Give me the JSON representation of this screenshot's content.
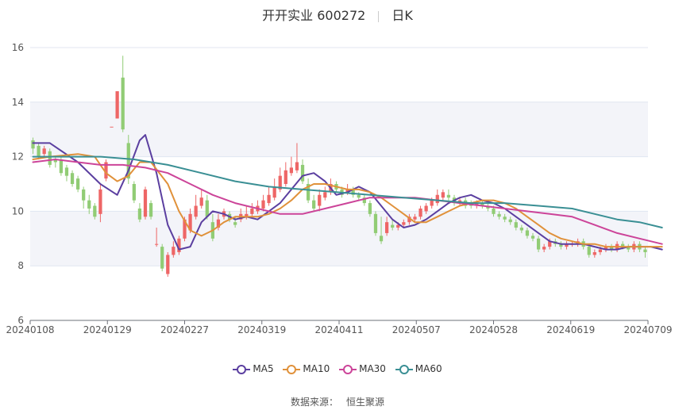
{
  "header": {
    "title": "开开实业 600272",
    "period": "日K"
  },
  "source": {
    "label": "数据来源：",
    "provider": "恒生聚源"
  },
  "colors": {
    "up": "#ee6666",
    "down": "#91cc75",
    "MA5": "#5b3fa0",
    "MA10": "#e0913a",
    "MA30": "#cc4499",
    "MA60": "#3a8f94",
    "band": "#f3f4f9",
    "grid": "#e0e6f1"
  },
  "chart_data": {
    "type": "candlestick",
    "title": "开开实业 600272",
    "ylim": [
      6,
      16
    ],
    "yticks": [
      6,
      8,
      10,
      12,
      14,
      16
    ],
    "xlabels": [
      "20240108",
      "20240129",
      "20240227",
      "20240319",
      "20240411",
      "20240507",
      "20240528",
      "20240619",
      "20240709"
    ],
    "legend": [
      "MA5",
      "MA10",
      "MA30",
      "MA60"
    ],
    "legend_position": "bottom",
    "grid": true,
    "candles": [
      [
        12.6,
        12.3,
        12.7,
        12.1
      ],
      [
        12.4,
        12.0,
        12.5,
        11.9
      ],
      [
        12.1,
        12.3,
        12.4,
        12.0
      ],
      [
        12.2,
        11.7,
        12.3,
        11.6
      ],
      [
        11.9,
        11.8,
        12.0,
        11.6
      ],
      [
        11.9,
        11.4,
        12.0,
        11.3
      ],
      [
        11.6,
        11.3,
        11.7,
        11.1
      ],
      [
        11.4,
        11.0,
        11.5,
        10.9
      ],
      [
        11.2,
        10.8,
        11.3,
        10.7
      ],
      [
        10.8,
        10.4,
        10.9,
        10.1
      ],
      [
        10.4,
        10.1,
        10.6,
        9.9
      ],
      [
        10.2,
        9.8,
        10.3,
        9.7
      ],
      [
        9.9,
        10.8,
        11.0,
        9.6
      ],
      [
        11.2,
        11.8,
        11.9,
        11.1
      ],
      [
        13.1,
        13.1,
        13.1,
        13.1
      ],
      [
        13.4,
        14.4,
        14.4,
        13.4
      ],
      [
        14.9,
        13.0,
        15.7,
        12.9
      ],
      [
        12.5,
        11.2,
        12.8,
        11.0
      ],
      [
        11.0,
        10.4,
        11.1,
        10.3
      ],
      [
        10.1,
        9.7,
        10.3,
        9.6
      ],
      [
        9.8,
        10.8,
        10.9,
        9.7
      ],
      [
        10.3,
        9.8,
        10.4,
        9.7
      ],
      [
        8.8,
        8.8,
        9.4,
        8.7
      ],
      [
        8.7,
        7.9,
        8.8,
        7.8
      ],
      [
        7.7,
        8.4,
        8.5,
        7.6
      ],
      [
        8.4,
        8.7,
        8.9,
        8.3
      ],
      [
        8.5,
        9.0,
        9.1,
        8.4
      ],
      [
        9.0,
        9.7,
        9.8,
        8.9
      ],
      [
        9.3,
        9.9,
        10.1,
        9.2
      ],
      [
        9.8,
        10.2,
        10.6,
        9.7
      ],
      [
        10.2,
        10.5,
        10.8,
        10.1
      ],
      [
        10.4,
        9.8,
        10.6,
        9.7
      ],
      [
        9.6,
        9.0,
        9.9,
        8.9
      ],
      [
        9.4,
        9.7,
        9.9,
        9.3
      ],
      [
        9.8,
        10.0,
        10.1,
        9.7
      ],
      [
        9.9,
        9.7,
        10.0,
        9.6
      ],
      [
        9.6,
        9.5,
        9.8,
        9.4
      ],
      [
        9.7,
        9.9,
        10.1,
        9.6
      ],
      [
        9.8,
        9.9,
        10.2,
        9.7
      ],
      [
        9.9,
        10.1,
        10.3,
        9.8
      ],
      [
        10.0,
        10.2,
        10.4,
        9.9
      ],
      [
        10.1,
        10.4,
        10.6,
        10.0
      ],
      [
        10.3,
        10.6,
        10.9,
        10.2
      ],
      [
        10.5,
        10.9,
        11.2,
        10.4
      ],
      [
        10.8,
        11.3,
        11.6,
        10.7
      ],
      [
        11.0,
        11.5,
        11.8,
        10.9
      ],
      [
        11.4,
        11.6,
        12.0,
        11.3
      ],
      [
        11.5,
        11.8,
        12.5,
        11.4
      ],
      [
        11.7,
        11.1,
        11.9,
        11.0
      ],
      [
        11.0,
        10.4,
        11.2,
        10.3
      ],
      [
        10.4,
        10.1,
        10.6,
        10.0
      ],
      [
        10.2,
        10.6,
        10.8,
        10.0
      ],
      [
        10.5,
        10.7,
        10.9,
        10.4
      ],
      [
        10.7,
        11.0,
        11.2,
        10.6
      ],
      [
        11.0,
        10.8,
        11.1,
        10.7
      ],
      [
        10.8,
        10.6,
        10.9,
        10.5
      ],
      [
        10.7,
        10.8,
        11.0,
        10.6
      ],
      [
        10.8,
        10.6,
        10.9,
        10.5
      ],
      [
        10.6,
        10.5,
        10.7,
        10.4
      ],
      [
        10.5,
        10.3,
        10.6,
        10.2
      ],
      [
        10.3,
        9.9,
        10.4,
        9.8
      ],
      [
        9.9,
        9.2,
        10.0,
        9.1
      ],
      [
        9.1,
        8.9,
        9.8,
        8.8
      ],
      [
        9.2,
        9.6,
        9.8,
        9.1
      ],
      [
        9.5,
        9.4,
        9.7,
        9.3
      ],
      [
        9.4,
        9.5,
        9.6,
        9.3
      ],
      [
        9.5,
        9.6,
        9.7,
        9.4
      ],
      [
        9.6,
        9.8,
        9.9,
        9.5
      ],
      [
        9.7,
        9.8,
        9.9,
        9.6
      ],
      [
        9.8,
        10.1,
        10.2,
        9.7
      ],
      [
        10.0,
        10.2,
        10.3,
        9.9
      ],
      [
        10.2,
        10.4,
        10.5,
        10.1
      ],
      [
        10.3,
        10.6,
        10.8,
        10.2
      ],
      [
        10.5,
        10.7,
        10.8,
        10.4
      ],
      [
        10.6,
        10.5,
        10.8,
        10.4
      ],
      [
        10.5,
        10.3,
        10.6,
        10.2
      ],
      [
        10.3,
        10.4,
        10.5,
        10.2
      ],
      [
        10.4,
        10.2,
        10.5,
        10.1
      ],
      [
        10.3,
        10.2,
        10.4,
        10.1
      ],
      [
        10.2,
        10.3,
        10.4,
        10.1
      ],
      [
        10.3,
        10.2,
        10.4,
        10.1
      ],
      [
        10.2,
        10.1,
        10.3,
        10.0
      ],
      [
        10.1,
        9.9,
        10.2,
        9.8
      ],
      [
        9.9,
        9.8,
        10.0,
        9.7
      ],
      [
        9.8,
        9.7,
        9.9,
        9.6
      ],
      [
        9.7,
        9.6,
        9.8,
        9.5
      ],
      [
        9.6,
        9.4,
        9.7,
        9.3
      ],
      [
        9.4,
        9.3,
        9.5,
        9.2
      ],
      [
        9.3,
        9.1,
        9.4,
        9.0
      ],
      [
        9.1,
        9.0,
        9.2,
        8.9
      ],
      [
        9.0,
        8.6,
        9.1,
        8.5
      ],
      [
        8.6,
        8.7,
        8.8,
        8.5
      ],
      [
        8.7,
        8.9,
        9.0,
        8.6
      ],
      [
        8.9,
        8.8,
        9.0,
        8.7
      ],
      [
        8.8,
        8.7,
        8.9,
        8.6
      ],
      [
        8.7,
        8.8,
        8.9,
        8.6
      ],
      [
        8.8,
        8.8,
        8.9,
        8.7
      ],
      [
        8.8,
        8.9,
        9.0,
        8.7
      ],
      [
        8.9,
        8.7,
        9.0,
        8.6
      ],
      [
        8.7,
        8.4,
        8.8,
        8.3
      ],
      [
        8.4,
        8.5,
        8.6,
        8.3
      ],
      [
        8.5,
        8.6,
        8.7,
        8.4
      ],
      [
        8.6,
        8.7,
        8.8,
        8.5
      ],
      [
        8.7,
        8.6,
        8.8,
        8.5
      ],
      [
        8.6,
        8.8,
        8.9,
        8.5
      ],
      [
        8.8,
        8.7,
        8.9,
        8.6
      ],
      [
        8.7,
        8.6,
        8.8,
        8.5
      ],
      [
        8.6,
        8.8,
        8.9,
        8.5
      ],
      [
        8.8,
        8.6,
        8.9,
        8.5
      ],
      [
        8.6,
        8.5,
        8.7,
        8.3
      ]
    ],
    "series": [
      {
        "name": "MA5",
        "values": [
          [
            0,
            12.5
          ],
          [
            3,
            12.5
          ],
          [
            8,
            11.8
          ],
          [
            12,
            11.0
          ],
          [
            15,
            10.6
          ],
          [
            17,
            11.5
          ],
          [
            19,
            12.6
          ],
          [
            20,
            12.8
          ],
          [
            22,
            11.4
          ],
          [
            24,
            9.5
          ],
          [
            26,
            8.6
          ],
          [
            28,
            8.7
          ],
          [
            30,
            9.6
          ],
          [
            32,
            10.0
          ],
          [
            34,
            9.9
          ],
          [
            36,
            9.7
          ],
          [
            38,
            9.8
          ],
          [
            40,
            9.7
          ],
          [
            42,
            10.0
          ],
          [
            44,
            10.3
          ],
          [
            46,
            10.8
          ],
          [
            48,
            11.3
          ],
          [
            50,
            11.4
          ],
          [
            52,
            11.1
          ],
          [
            54,
            10.6
          ],
          [
            56,
            10.7
          ],
          [
            58,
            10.9
          ],
          [
            60,
            10.7
          ],
          [
            62,
            10.2
          ],
          [
            64,
            9.7
          ],
          [
            66,
            9.4
          ],
          [
            68,
            9.5
          ],
          [
            70,
            9.7
          ],
          [
            72,
            10.0
          ],
          [
            74,
            10.3
          ],
          [
            76,
            10.5
          ],
          [
            78,
            10.6
          ],
          [
            80,
            10.4
          ],
          [
            82,
            10.3
          ],
          [
            84,
            10.1
          ],
          [
            86,
            9.8
          ],
          [
            88,
            9.5
          ],
          [
            90,
            9.2
          ],
          [
            92,
            8.9
          ],
          [
            94,
            8.8
          ],
          [
            96,
            8.8
          ],
          [
            98,
            8.8
          ],
          [
            100,
            8.7
          ],
          [
            102,
            8.6
          ],
          [
            104,
            8.6
          ],
          [
            106,
            8.7
          ],
          [
            108,
            8.7
          ],
          [
            110,
            8.7
          ],
          [
            112,
            8.6
          ]
        ]
      },
      {
        "name": "MA10",
        "values": [
          [
            0,
            11.9
          ],
          [
            3,
            12.0
          ],
          [
            8,
            12.1
          ],
          [
            11,
            12.0
          ],
          [
            13,
            11.4
          ],
          [
            15,
            11.1
          ],
          [
            17,
            11.3
          ],
          [
            19,
            11.8
          ],
          [
            21,
            11.8
          ],
          [
            24,
            11.0
          ],
          [
            26,
            10.0
          ],
          [
            28,
            9.3
          ],
          [
            30,
            9.1
          ],
          [
            32,
            9.3
          ],
          [
            34,
            9.6
          ],
          [
            36,
            9.8
          ],
          [
            38,
            9.8
          ],
          [
            40,
            9.8
          ],
          [
            42,
            9.9
          ],
          [
            44,
            10.1
          ],
          [
            46,
            10.4
          ],
          [
            48,
            10.8
          ],
          [
            50,
            11.0
          ],
          [
            52,
            11.0
          ],
          [
            54,
            10.9
          ],
          [
            56,
            10.8
          ],
          [
            58,
            10.8
          ],
          [
            60,
            10.7
          ],
          [
            62,
            10.5
          ],
          [
            64,
            10.2
          ],
          [
            66,
            9.9
          ],
          [
            68,
            9.6
          ],
          [
            70,
            9.6
          ],
          [
            72,
            9.8
          ],
          [
            74,
            10.0
          ],
          [
            76,
            10.2
          ],
          [
            78,
            10.3
          ],
          [
            80,
            10.4
          ],
          [
            82,
            10.4
          ],
          [
            84,
            10.3
          ],
          [
            86,
            10.1
          ],
          [
            88,
            9.8
          ],
          [
            90,
            9.5
          ],
          [
            92,
            9.2
          ],
          [
            94,
            9.0
          ],
          [
            96,
            8.9
          ],
          [
            98,
            8.8
          ],
          [
            100,
            8.8
          ],
          [
            102,
            8.7
          ],
          [
            104,
            8.7
          ],
          [
            106,
            8.7
          ],
          [
            108,
            8.7
          ],
          [
            110,
            8.7
          ],
          [
            112,
            8.7
          ]
        ]
      },
      {
        "name": "MA30",
        "values": [
          [
            0,
            11.8
          ],
          [
            4,
            11.9
          ],
          [
            8,
            11.8
          ],
          [
            12,
            11.7
          ],
          [
            16,
            11.7
          ],
          [
            20,
            11.6
          ],
          [
            24,
            11.4
          ],
          [
            28,
            11.0
          ],
          [
            32,
            10.6
          ],
          [
            36,
            10.3
          ],
          [
            40,
            10.1
          ],
          [
            44,
            9.9
          ],
          [
            48,
            9.9
          ],
          [
            52,
            10.1
          ],
          [
            56,
            10.3
          ],
          [
            60,
            10.5
          ],
          [
            64,
            10.5
          ],
          [
            68,
            10.5
          ],
          [
            72,
            10.4
          ],
          [
            76,
            10.3
          ],
          [
            80,
            10.2
          ],
          [
            84,
            10.1
          ],
          [
            88,
            10.0
          ],
          [
            92,
            9.9
          ],
          [
            96,
            9.8
          ],
          [
            100,
            9.5
          ],
          [
            104,
            9.2
          ],
          [
            108,
            9.0
          ],
          [
            112,
            8.8
          ]
        ]
      },
      {
        "name": "MA60",
        "values": [
          [
            0,
            12.0
          ],
          [
            6,
            12.0
          ],
          [
            12,
            12.0
          ],
          [
            18,
            11.9
          ],
          [
            24,
            11.7
          ],
          [
            30,
            11.4
          ],
          [
            36,
            11.1
          ],
          [
            42,
            10.9
          ],
          [
            48,
            10.8
          ],
          [
            54,
            10.7
          ],
          [
            60,
            10.6
          ],
          [
            66,
            10.5
          ],
          [
            72,
            10.4
          ],
          [
            78,
            10.3
          ],
          [
            84,
            10.3
          ],
          [
            90,
            10.2
          ],
          [
            96,
            10.1
          ],
          [
            100,
            9.9
          ],
          [
            104,
            9.7
          ],
          [
            108,
            9.6
          ],
          [
            112,
            9.4
          ]
        ]
      }
    ]
  }
}
